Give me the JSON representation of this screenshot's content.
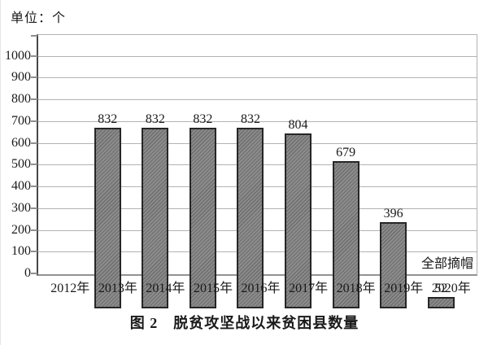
{
  "chart_data": {
    "type": "bar",
    "unit_label": "单位：个",
    "title": "图 2　脱贫攻坚战以来贫困县数量",
    "categories": [
      "2012年",
      "2013年",
      "2014年",
      "2015年",
      "2016年",
      "2017年",
      "2018年",
      "2019年",
      "2020年"
    ],
    "values": [
      832,
      832,
      832,
      832,
      804,
      679,
      396,
      52,
      null
    ],
    "annotation": {
      "text": "全部摘帽",
      "attached_to": "2019年"
    },
    "ylim": [
      0,
      1100
    ],
    "ytick_step": 100,
    "ytick_labels": [
      "0",
      "100",
      "200",
      "300",
      "400",
      "500",
      "600",
      "700",
      "800",
      "900",
      "1000"
    ],
    "grid": "horizontal-only",
    "legend": "none",
    "colors": {
      "bar_fill": "#8c8c8c",
      "bar_hatch": "#6e6e6e",
      "bar_border": "#262626",
      "gridline": "#b3b3b3",
      "y_axis": "#474747",
      "x_axis": "#929292",
      "text": "#1a1a1a",
      "background": "#ffffff"
    }
  }
}
